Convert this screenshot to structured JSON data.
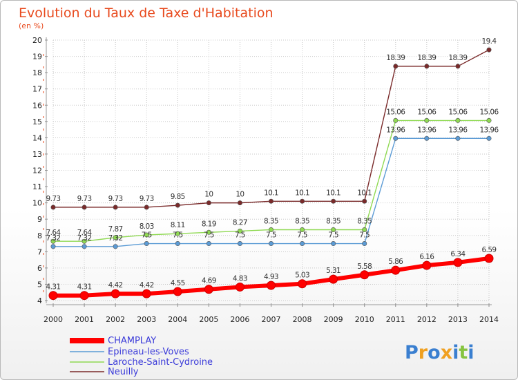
{
  "chart_data": {
    "type": "line",
    "title": "Evolution du Taux de Taxe d'Habitation",
    "subtitle": "(en %)",
    "x": [
      "2000",
      "2001",
      "2002",
      "2003",
      "2004",
      "2005",
      "2006",
      "2007",
      "2008",
      "2009",
      "2010",
      "2011",
      "2012",
      "2013",
      "2014"
    ],
    "ylim": [
      4,
      20
    ],
    "yticks": [
      "4",
      "5",
      "6",
      "7",
      "8",
      "9",
      "10",
      "11",
      "12",
      "13",
      "14",
      "15",
      "16",
      "17",
      "18",
      "19",
      "20"
    ],
    "grid": true,
    "legend_position": "bottom-left",
    "series": [
      {
        "name": "CHAMPLAY",
        "color": "#ff0000",
        "values": [
          4.31,
          4.31,
          4.42,
          4.42,
          4.55,
          4.69,
          4.83,
          4.93,
          5.03,
          5.31,
          5.58,
          5.86,
          6.16,
          6.34,
          6.59
        ],
        "labels": [
          "4.31",
          "4.31",
          "4.42",
          "4.42",
          "4.55",
          "4.69",
          "4.83",
          "4.93",
          "5.03",
          "5.31",
          "5.58",
          "5.86",
          "6.16",
          "6.34",
          "6.59"
        ]
      },
      {
        "name": "Epineau-les-Voves",
        "color": "#5b9bd5",
        "values": [
          7.32,
          7.32,
          7.32,
          7.5,
          7.5,
          7.5,
          7.5,
          7.5,
          7.5,
          7.5,
          7.5,
          13.96,
          13.96,
          13.96,
          13.96
        ],
        "labels": [
          "7.32",
          "7.32",
          "7.32",
          "7.5",
          "7.5",
          "7.5",
          "7.5",
          "7.5",
          "7.5",
          "7.5",
          "7.5",
          "13.96",
          "13.96",
          "13.96",
          "13.96"
        ]
      },
      {
        "name": "Laroche-Saint-Cydroine",
        "color": "#8fd952",
        "values": [
          7.64,
          7.64,
          7.87,
          8.03,
          8.11,
          8.19,
          8.27,
          8.35,
          8.35,
          8.35,
          8.35,
          15.06,
          15.06,
          15.06,
          15.06
        ],
        "labels": [
          "7.64",
          "7.64",
          "7.87",
          "8.03",
          "8.11",
          "8.19",
          "8.27",
          "8.35",
          "8.35",
          "8.35",
          "8.35",
          "15.06",
          "15.06",
          "15.06",
          "15.06"
        ]
      },
      {
        "name": "Neuilly",
        "color": "#7a2a2a",
        "values": [
          9.73,
          9.73,
          9.73,
          9.73,
          9.85,
          10,
          10,
          10.1,
          10.1,
          10.1,
          10.1,
          18.39,
          18.39,
          18.39,
          19.4
        ],
        "labels": [
          "9.73",
          "9.73",
          "9.73",
          "9.73",
          "9.85",
          "10",
          "10",
          "10.1",
          "10.1",
          "10.1",
          "10.1",
          "18.39",
          "18.39",
          "18.39",
          "19.4"
        ]
      }
    ]
  },
  "logo": {
    "letters": [
      "P",
      "r",
      "o",
      "x",
      "i",
      "t",
      "i"
    ],
    "colors": [
      "#3a7fd0",
      "#f0a020",
      "#3a7fd0",
      "#f0a020",
      "#3a7fd0",
      "#86c440",
      "#3a7fd0"
    ]
  }
}
